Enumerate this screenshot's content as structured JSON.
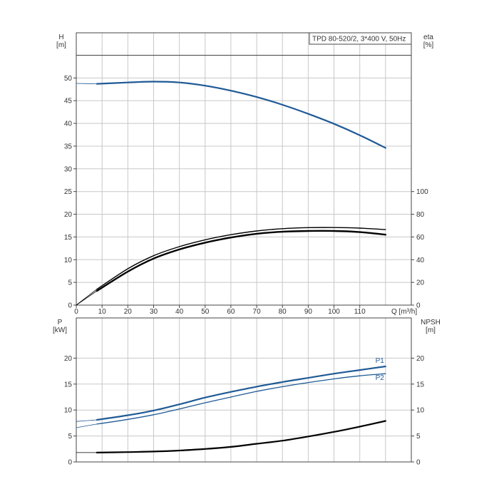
{
  "chart_data": [
    {
      "type": "line",
      "title": "TPD 80-520/2, 3*400 V, 50Hz",
      "x_axis": {
        "label": "Q [m³/h]",
        "range": [
          0,
          130
        ],
        "ticks": [
          0,
          10,
          20,
          30,
          40,
          50,
          60,
          70,
          80,
          90,
          100,
          110
        ]
      },
      "y_left": {
        "label_top": "H",
        "label_unit": "[m]",
        "range": [
          0,
          55
        ],
        "ticks": [
          0,
          5,
          10,
          15,
          20,
          25,
          30,
          35,
          40,
          45,
          50
        ]
      },
      "y_right": {
        "label_top": "eta",
        "label_unit": "[%]",
        "range": [
          0,
          100
        ],
        "ticks": [
          0,
          20,
          40,
          60,
          80,
          100
        ]
      },
      "grid": true,
      "series": [
        {
          "axis": "left",
          "color": "#1f5a96",
          "width": 2.2,
          "x": [
            0,
            8,
            20,
            30,
            40,
            50,
            60,
            70,
            80,
            90,
            100,
            110,
            120
          ],
          "y": [
            48.8,
            48.7,
            49.0,
            49.2,
            49.0,
            48.3,
            47.2,
            45.8,
            44.1,
            42.1,
            39.9,
            37.4,
            34.6
          ],
          "extrapolated_until": 8
        },
        {
          "axis": "right",
          "color": "#000000",
          "width": 1.4,
          "x": [
            0,
            8,
            20,
            30,
            40,
            50,
            60,
            70,
            80,
            90,
            100,
            110,
            120
          ],
          "y": [
            0,
            14,
            32,
            43.5,
            51.5,
            57.5,
            62.0,
            65.3,
            67.3,
            68.2,
            68.3,
            67.8,
            66.5
          ],
          "extrapolated_until": 8
        },
        {
          "axis": "right",
          "color": "#000000",
          "width": 2.4,
          "x": [
            0,
            8,
            20,
            30,
            40,
            50,
            60,
            70,
            80,
            90,
            100,
            110,
            120
          ],
          "y": [
            0,
            12.5,
            29.5,
            41.0,
            49.0,
            55.0,
            59.5,
            62.8,
            64.6,
            65.3,
            65.3,
            64.3,
            62.0
          ],
          "extrapolated_until": 8
        }
      ]
    },
    {
      "type": "line",
      "x_axis": {
        "range": [
          0,
          130
        ]
      },
      "y_left": {
        "label_top": "P",
        "label_unit": "[kW]",
        "range": [
          0,
          25
        ],
        "ticks": [
          0,
          5,
          10,
          15,
          20
        ]
      },
      "y_right": {
        "label_top": "NPSH",
        "label_unit": "[m]",
        "range": [
          0,
          25
        ],
        "ticks": [
          0,
          5,
          10,
          15,
          20
        ]
      },
      "grid": true,
      "series": [
        {
          "name": "P1",
          "axis": "left",
          "color": "#1f5a96",
          "width": 2.2,
          "x": [
            0,
            8,
            20,
            30,
            40,
            50,
            60,
            70,
            80,
            90,
            100,
            110,
            120
          ],
          "y": [
            7.8,
            8.1,
            9.0,
            9.9,
            11.1,
            12.4,
            13.5,
            14.5,
            15.4,
            16.2,
            17.0,
            17.7,
            18.4
          ],
          "extrapolated_until": 8
        },
        {
          "name": "P2",
          "axis": "left",
          "color": "#1f5a96",
          "width": 1.3,
          "x": [
            0,
            8,
            20,
            30,
            40,
            50,
            60,
            70,
            80,
            90,
            100,
            110,
            120
          ],
          "y": [
            6.6,
            7.3,
            8.2,
            9.1,
            10.2,
            11.4,
            12.5,
            13.6,
            14.5,
            15.3,
            16.0,
            16.6,
            17.0
          ],
          "extrapolated_until": 8
        },
        {
          "axis": "right",
          "color": "#000000",
          "width": 2.2,
          "x": [
            0,
            8,
            20,
            30,
            40,
            50,
            60,
            70,
            80,
            90,
            100,
            110,
            120
          ],
          "y": [
            1.8,
            1.8,
            1.9,
            2.0,
            2.2,
            2.5,
            2.9,
            3.5,
            4.1,
            4.9,
            5.8,
            6.8,
            7.9
          ],
          "extrapolated_until": 8
        }
      ]
    }
  ]
}
